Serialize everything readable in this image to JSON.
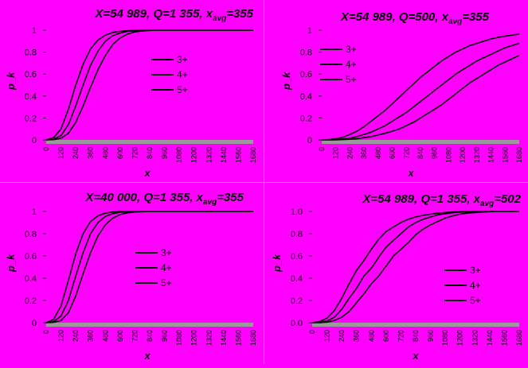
{
  "chart_data": [
    {
      "type": "line",
      "title": "X=54 989, Q=1 355, x",
      "title_sub": "avg",
      "title_tail": "=355",
      "xlabel": "x",
      "ylabel": "p_k",
      "ylim": [
        0,
        1
      ],
      "yticks": [
        "0",
        "0.2",
        "0.4",
        "0.6",
        "0.8",
        "1"
      ],
      "x": [
        0,
        60,
        120,
        180,
        240,
        300,
        360,
        420,
        480,
        540,
        600,
        660,
        720,
        780,
        840,
        900,
        960,
        1020,
        1080,
        1140,
        1200,
        1260,
        1320,
        1380,
        1440,
        1500,
        1560,
        1620,
        1680
      ],
      "xticks": [
        "0",
        "120",
        "240",
        "360",
        "480",
        "600",
        "720",
        "840",
        "960",
        "1080",
        "1200",
        "1320",
        "1440",
        "1560",
        "1680"
      ],
      "series": [
        {
          "name": "3+",
          "values": [
            0,
            0.02,
            0.1,
            0.28,
            0.5,
            0.69,
            0.83,
            0.91,
            0.955,
            0.98,
            0.99,
            0.995,
            0.998,
            1,
            1,
            1,
            1,
            1,
            1,
            1,
            1,
            1,
            1,
            1,
            1,
            1,
            1,
            1,
            1
          ]
        },
        {
          "name": "4+",
          "values": [
            0,
            0.005,
            0.04,
            0.14,
            0.31,
            0.5,
            0.68,
            0.81,
            0.9,
            0.95,
            0.975,
            0.99,
            0.995,
            0.998,
            1,
            1,
            1,
            1,
            1,
            1,
            1,
            1,
            1,
            1,
            1,
            1,
            1,
            1,
            1
          ]
        },
        {
          "name": "5+",
          "values": [
            0,
            0.002,
            0.015,
            0.06,
            0.16,
            0.31,
            0.48,
            0.64,
            0.77,
            0.87,
            0.93,
            0.965,
            0.985,
            0.993,
            0.998,
            1,
            1,
            1,
            1,
            1,
            1,
            1,
            1,
            1,
            1,
            1,
            1,
            1,
            1
          ]
        }
      ],
      "legend": "center-right"
    },
    {
      "type": "line",
      "title": "X=54 989, Q=500, x",
      "title_sub": "avg",
      "title_tail": "=355",
      "xlabel": "x",
      "ylabel": "p_k",
      "ylim": [
        0,
        1
      ],
      "yticks": [
        "0",
        "0.2",
        "0.4",
        "0.6",
        "0.8",
        "1"
      ],
      "x": [
        0,
        60,
        120,
        180,
        240,
        300,
        360,
        420,
        480,
        540,
        600,
        660,
        720,
        780,
        840,
        900,
        960,
        1020,
        1080,
        1140,
        1200,
        1260,
        1320,
        1380,
        1440,
        1500,
        1560,
        1620,
        1680
      ],
      "xticks": [
        "0",
        "120",
        "240",
        "360",
        "480",
        "600",
        "720",
        "840",
        "960",
        "1080",
        "1200",
        "1320",
        "1440",
        "1560",
        "1680"
      ],
      "series": [
        {
          "name": "3+",
          "values": [
            0,
            0.003,
            0.01,
            0.025,
            0.05,
            0.08,
            0.12,
            0.17,
            0.22,
            0.27,
            0.33,
            0.39,
            0.45,
            0.51,
            0.57,
            0.62,
            0.67,
            0.72,
            0.76,
            0.8,
            0.83,
            0.86,
            0.88,
            0.9,
            0.92,
            0.935,
            0.945,
            0.955,
            0.965
          ]
        },
        {
          "name": "4+",
          "values": [
            0,
            0.001,
            0.003,
            0.008,
            0.015,
            0.03,
            0.05,
            0.07,
            0.1,
            0.13,
            0.17,
            0.21,
            0.25,
            0.3,
            0.35,
            0.4,
            0.45,
            0.5,
            0.55,
            0.6,
            0.64,
            0.68,
            0.72,
            0.75,
            0.78,
            0.81,
            0.84,
            0.86,
            0.88
          ]
        },
        {
          "name": "5+",
          "values": [
            0,
            0,
            0.001,
            0.003,
            0.006,
            0.01,
            0.02,
            0.03,
            0.045,
            0.06,
            0.08,
            0.1,
            0.13,
            0.16,
            0.2,
            0.24,
            0.28,
            0.32,
            0.37,
            0.42,
            0.47,
            0.52,
            0.56,
            0.6,
            0.64,
            0.68,
            0.71,
            0.74,
            0.77
          ]
        }
      ],
      "legend": "top-center"
    },
    {
      "type": "line",
      "title": "X=40 000, Q=1 355, x",
      "title_sub": "avg",
      "title_tail": "=355",
      "xlabel": "x",
      "ylabel": "p_k",
      "ylim": [
        0,
        1
      ],
      "yticks": [
        "0",
        "0.2",
        "0.4",
        "0.6",
        "0.8",
        "1"
      ],
      "x": [
        0,
        60,
        120,
        180,
        240,
        300,
        360,
        420,
        480,
        540,
        600,
        660,
        720,
        780,
        840,
        900,
        960,
        1020,
        1080,
        1140,
        1200,
        1260,
        1320,
        1380,
        1440,
        1500,
        1560,
        1620,
        1680
      ],
      "xticks": [
        "0",
        "120",
        "240",
        "360",
        "480",
        "600",
        "720",
        "840",
        "960",
        "1080",
        "1200",
        "1320",
        "1440",
        "1560",
        "1680"
      ],
      "series": [
        {
          "name": "3+",
          "values": [
            0,
            0.03,
            0.15,
            0.38,
            0.62,
            0.8,
            0.91,
            0.96,
            0.985,
            0.995,
            1,
            1,
            1,
            1,
            1,
            1,
            1,
            1,
            1,
            1,
            1,
            1,
            1,
            1,
            1,
            1,
            1,
            1,
            1
          ]
        },
        {
          "name": "4+",
          "values": [
            0,
            0.01,
            0.06,
            0.2,
            0.42,
            0.63,
            0.8,
            0.9,
            0.955,
            0.98,
            0.993,
            0.998,
            1,
            1,
            1,
            1,
            1,
            1,
            1,
            1,
            1,
            1,
            1,
            1,
            1,
            1,
            1,
            1,
            1
          ]
        },
        {
          "name": "5+",
          "values": [
            0,
            0.003,
            0.02,
            0.09,
            0.24,
            0.44,
            0.63,
            0.78,
            0.88,
            0.94,
            0.972,
            0.988,
            0.995,
            0.998,
            1,
            1,
            1,
            1,
            1,
            1,
            1,
            1,
            1,
            1,
            1,
            1,
            1,
            1,
            1
          ]
        }
      ],
      "legend": "center-right"
    },
    {
      "type": "line",
      "title": "X=54 989, Q=1 355, x",
      "title_sub": "avg",
      "title_tail": "=502",
      "xlabel": "x",
      "ylabel": "p_k",
      "ylim": [
        0,
        1
      ],
      "yticks": [
        "0.0",
        "0.2",
        "0.4",
        "0.6",
        "0.8",
        "1.0"
      ],
      "x": [
        0,
        60,
        120,
        180,
        240,
        300,
        360,
        420,
        480,
        540,
        600,
        660,
        720,
        780,
        840,
        900,
        960,
        1020,
        1080,
        1140,
        1200,
        1260,
        1320,
        1380,
        1440,
        1500,
        1560,
        1620,
        1680
      ],
      "xticks": [
        "0",
        "120",
        "240",
        "360",
        "480",
        "600",
        "720",
        "840",
        "960",
        "1080",
        "1200",
        "1320",
        "1440",
        "1560",
        "1680"
      ],
      "series": [
        {
          "name": "3+",
          "values": [
            0,
            0.01,
            0.04,
            0.11,
            0.22,
            0.35,
            0.47,
            0.56,
            0.66,
            0.75,
            0.82,
            0.86,
            0.9,
            0.93,
            0.95,
            0.965,
            0.975,
            0.985,
            0.99,
            0.995,
            0.998,
            1,
            1,
            1,
            1,
            1,
            1,
            1,
            1
          ]
        },
        {
          "name": "4+",
          "values": [
            0,
            0.003,
            0.015,
            0.05,
            0.12,
            0.22,
            0.31,
            0.42,
            0.49,
            0.59,
            0.68,
            0.74,
            0.8,
            0.86,
            0.9,
            0.93,
            0.95,
            0.97,
            0.98,
            0.988,
            0.993,
            0.996,
            0.998,
            1,
            1,
            1,
            1,
            1,
            1
          ]
        },
        {
          "name": "5+",
          "values": [
            0,
            0.001,
            0.005,
            0.02,
            0.05,
            0.1,
            0.18,
            0.26,
            0.35,
            0.42,
            0.51,
            0.6,
            0.66,
            0.72,
            0.79,
            0.84,
            0.88,
            0.91,
            0.94,
            0.96,
            0.975,
            0.985,
            0.99,
            0.995,
            0.998,
            1,
            1,
            1,
            1
          ]
        }
      ],
      "legend": "center-right"
    }
  ]
}
